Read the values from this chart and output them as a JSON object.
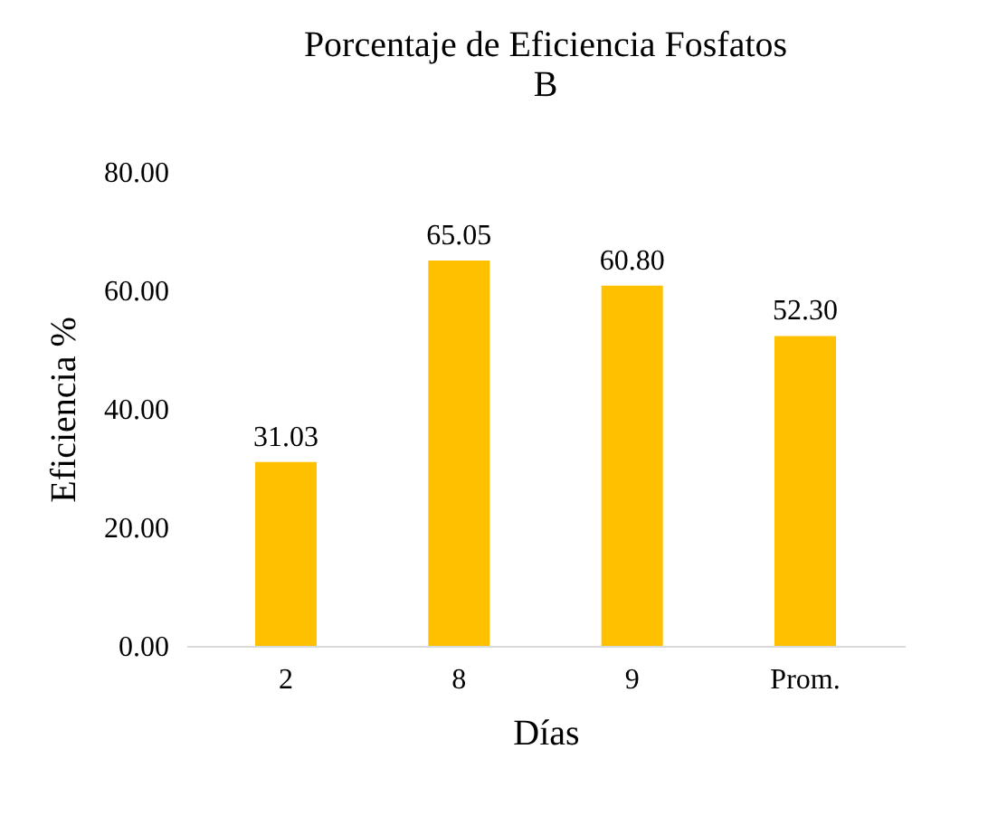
{
  "chart_data": {
    "type": "bar",
    "title": "Porcentaje de Eficiencia Fosfatos\nB",
    "xlabel": "Días",
    "ylabel": "Eficiencia %",
    "categories": [
      "2",
      "8",
      "9",
      "Prom."
    ],
    "values": [
      31.03,
      65.05,
      60.8,
      52.3
    ],
    "value_labels": [
      "31.03",
      "65.05",
      "60.80",
      "52.30"
    ],
    "color": "#ffc000",
    "ylim": [
      0,
      80
    ],
    "yticks": [
      {
        "value": 0,
        "label": "0.00"
      },
      {
        "value": 20,
        "label": "20.00"
      },
      {
        "value": 40,
        "label": "40.00"
      },
      {
        "value": 60,
        "label": "60.00"
      },
      {
        "value": 80,
        "label": "80.00"
      }
    ],
    "grid": false
  }
}
